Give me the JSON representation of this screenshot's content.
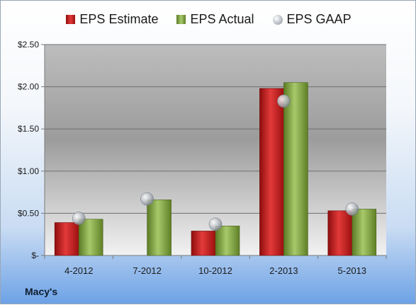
{
  "company": "Macy's",
  "legend": {
    "estimate": "EPS Estimate",
    "actual": "EPS Actual",
    "gaap": "EPS GAAP"
  },
  "colors": {
    "estimate": "#d42323",
    "actual": "#8cb04a",
    "gaap": "#b8bec6"
  },
  "chart_data": {
    "type": "bar",
    "categories": [
      "4-2012",
      "7-2012",
      "10-2012",
      "2-2013",
      "5-2013"
    ],
    "series": [
      {
        "name": "EPS Estimate",
        "values": [
          0.39,
          null,
          0.29,
          1.98,
          0.53
        ]
      },
      {
        "name": "EPS Actual",
        "values": [
          0.43,
          0.66,
          0.35,
          2.05,
          0.55
        ]
      },
      {
        "name": "EPS GAAP",
        "type": "scatter",
        "values": [
          0.44,
          0.67,
          0.37,
          1.83,
          0.55
        ]
      }
    ],
    "ylim": [
      0,
      2.5
    ],
    "yticks": [
      0,
      0.5,
      1.0,
      1.5,
      2.0,
      2.5
    ],
    "ytick_labels": [
      "$-",
      "$0.50",
      "$1.00",
      "$1.50",
      "$2.00",
      "$2.50"
    ],
    "grid": true,
    "legend_position": "top"
  }
}
